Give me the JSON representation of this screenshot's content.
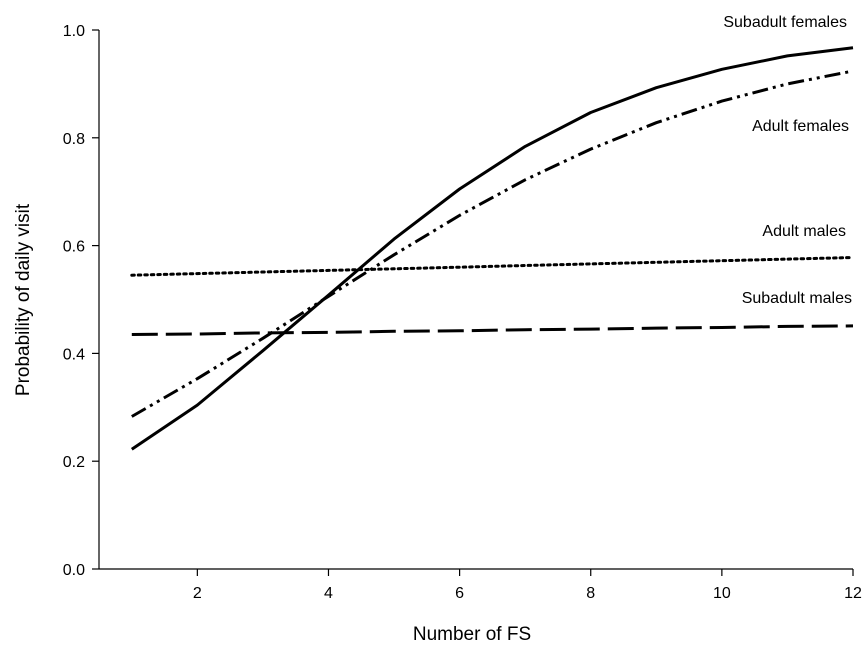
{
  "chart_data": {
    "type": "line",
    "xlabel": "Number of FS",
    "ylabel": "Probability of daily visit",
    "xlim": [
      0.5,
      12
    ],
    "ylim": [
      0,
      1.0
    ],
    "xticks": [
      "2",
      "4",
      "6",
      "8",
      "10",
      "12"
    ],
    "yticks": [
      "0.0",
      "0.2",
      "0.4",
      "0.6",
      "0.8",
      "1.0"
    ],
    "x": [
      1,
      2,
      3,
      4,
      5,
      6,
      7,
      8,
      9,
      10,
      11,
      12
    ],
    "series": [
      {
        "name": "Subadult females",
        "style": "solid",
        "values": [
          0.222,
          0.304,
          0.405,
          0.508,
          0.612,
          0.705,
          0.784,
          0.847,
          0.893,
          0.927,
          0.952,
          0.967
        ]
      },
      {
        "name": "Adult females",
        "style": "dash-dot-dot",
        "values": [
          0.283,
          0.353,
          0.428,
          0.506,
          0.583,
          0.656,
          0.722,
          0.779,
          0.828,
          0.868,
          0.9,
          0.924
        ]
      },
      {
        "name": "Adult males",
        "style": "dotted",
        "values": [
          0.545,
          0.548,
          0.551,
          0.554,
          0.557,
          0.56,
          0.563,
          0.566,
          0.569,
          0.572,
          0.575,
          0.578
        ]
      },
      {
        "name": "Subadult males",
        "style": "dashed",
        "values": [
          0.435,
          0.436,
          0.438,
          0.439,
          0.441,
          0.442,
          0.444,
          0.445,
          0.447,
          0.448,
          0.45,
          0.451
        ]
      }
    ]
  }
}
